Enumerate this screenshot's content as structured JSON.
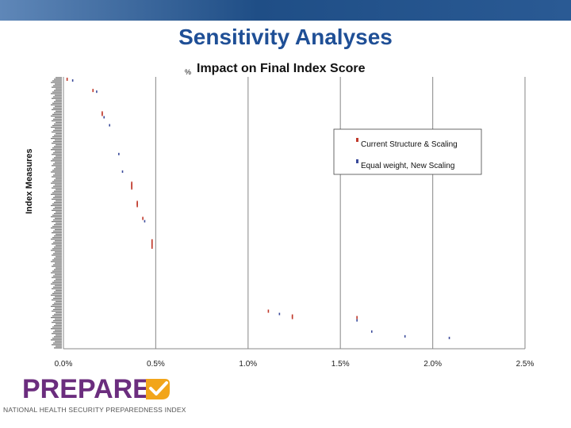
{
  "slide": {
    "title": "Sensitivity Analyses"
  },
  "colors": {
    "band": "#1f4e86",
    "title": "#1f4f96",
    "series1": "#c0392b",
    "series2": "#3a4a9a",
    "logo_purple": "#6b2d7e",
    "logo_orange": "#f2a51a"
  },
  "chart_data": {
    "type": "scatter",
    "title": "Impact on Final Index Score",
    "title_prefix": "%",
    "xlabel": "",
    "ylabel": "Index Measures",
    "xlim": [
      0,
      0.025
    ],
    "x_ticks": [
      0.0,
      0.005,
      0.01,
      0.015,
      0.02,
      0.025
    ],
    "x_tick_labels": [
      "0.0%",
      "0.5%",
      "1.0%",
      "1.5%",
      "2.0%",
      "2.5%"
    ],
    "grid": "vertical",
    "legend_position": "right",
    "n_categories": 170,
    "series": [
      {
        "name": "Current Structure & Scaling",
        "color": "#c0392b",
        "points": [
          {
            "idx": 1,
            "x": 0.0002
          },
          {
            "idx": 8,
            "x": 0.0016
          },
          {
            "idx": 22,
            "x": 0.0021
          },
          {
            "idx": 23,
            "x": 0.0021
          },
          {
            "idx": 66,
            "x": 0.0037
          },
          {
            "idx": 67,
            "x": 0.0037
          },
          {
            "idx": 68,
            "x": 0.0037
          },
          {
            "idx": 69,
            "x": 0.0037
          },
          {
            "idx": 78,
            "x": 0.004
          },
          {
            "idx": 79,
            "x": 0.004
          },
          {
            "idx": 80,
            "x": 0.004
          },
          {
            "idx": 88,
            "x": 0.0043
          },
          {
            "idx": 102,
            "x": 0.0048
          },
          {
            "idx": 103,
            "x": 0.0048
          },
          {
            "idx": 104,
            "x": 0.0048
          },
          {
            "idx": 105,
            "x": 0.0048
          },
          {
            "idx": 106,
            "x": 0.0048
          },
          {
            "idx": 146,
            "x": 0.0111
          },
          {
            "idx": 149,
            "x": 0.0124
          },
          {
            "idx": 150,
            "x": 0.0124
          },
          {
            "idx": 150,
            "x": 0.0159
          }
        ]
      },
      {
        "name": "Equal weight, New Scaling",
        "color": "#3a4a9a",
        "points": [
          {
            "idx": 2,
            "x": 0.0005
          },
          {
            "idx": 9,
            "x": 0.0018
          },
          {
            "idx": 25,
            "x": 0.0022
          },
          {
            "idx": 30,
            "x": 0.0025
          },
          {
            "idx": 48,
            "x": 0.003
          },
          {
            "idx": 59,
            "x": 0.0032
          },
          {
            "idx": 90,
            "x": 0.0044
          },
          {
            "idx": 148,
            "x": 0.0117
          },
          {
            "idx": 152,
            "x": 0.0159
          },
          {
            "idx": 159,
            "x": 0.0167
          },
          {
            "idx": 162,
            "x": 0.0185
          },
          {
            "idx": 163,
            "x": 0.0209
          }
        ]
      }
    ]
  },
  "logo": {
    "word": "PREPARE",
    "tagline": "NATIONAL HEALTH SECURITY PREPAREDNESS INDEX"
  }
}
